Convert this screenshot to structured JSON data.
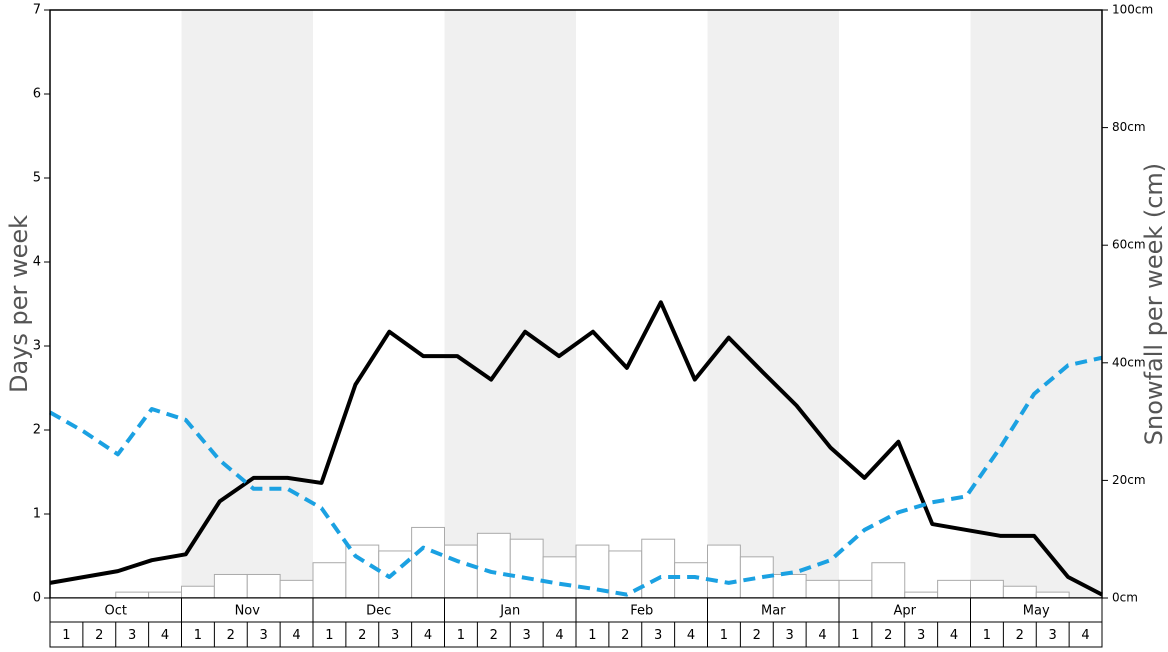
{
  "chart_data": {
    "type": "combo",
    "y_label": "Days per week",
    "y2_label": "Snowfall per week (cm)",
    "months": [
      "Oct",
      "Nov",
      "Dec",
      "Jan",
      "Feb",
      "Mar",
      "Apr",
      "May"
    ],
    "weeks": [
      "1",
      "2",
      "3",
      "4"
    ],
    "shaded_months": [
      false,
      true,
      false,
      true,
      false,
      true,
      false,
      true
    ],
    "ylim": [
      0,
      7
    ],
    "yticks": [
      0,
      1,
      2,
      3,
      4,
      5,
      6,
      7
    ],
    "y2lim": [
      0,
      100
    ],
    "y2ticks": [
      {
        "value": 0,
        "label": "0cm"
      },
      {
        "value": 20,
        "label": "20cm"
      },
      {
        "value": 40,
        "label": "40cm"
      },
      {
        "value": 60,
        "label": "60cm"
      },
      {
        "value": 80,
        "label": "80cm"
      },
      {
        "value": 100,
        "label": "100cm"
      }
    ],
    "series": [
      {
        "type": "bar",
        "axis": "y2",
        "color": "#ffffff",
        "stroke": "#aaaaaa",
        "values": [
          0,
          0,
          1,
          1,
          2,
          4,
          4,
          3,
          6,
          9,
          8,
          12,
          9,
          11,
          10,
          7,
          9,
          8,
          10,
          6,
          9,
          7,
          4,
          3,
          3,
          6,
          1,
          3,
          3,
          2,
          1,
          0
        ]
      },
      {
        "type": "line",
        "color": "#000000",
        "dashed": false,
        "values": [
          0.18,
          0.25,
          0.32,
          0.45,
          0.52,
          1.15,
          1.43,
          1.43,
          1.37,
          2.54,
          3.17,
          2.88,
          2.88,
          2.6,
          3.17,
          2.88,
          3.17,
          2.74,
          3.52,
          2.6,
          3.1,
          2.69,
          2.29,
          1.79,
          1.43,
          1.86,
          0.88,
          0.81,
          0.74,
          0.74,
          0.25,
          0.04
        ]
      },
      {
        "type": "line",
        "color": "#1ba1e2",
        "dashed": true,
        "values": [
          2.21,
          1.98,
          1.71,
          2.25,
          2.12,
          1.64,
          1.3,
          1.3,
          1.07,
          0.5,
          0.25,
          0.6,
          0.44,
          0.31,
          0.24,
          0.17,
          0.11,
          0.04,
          0.25,
          0.25,
          0.18,
          0.25,
          0.31,
          0.45,
          0.81,
          1.02,
          1.14,
          1.21,
          1.79,
          2.43,
          2.77,
          2.86
        ]
      }
    ]
  }
}
